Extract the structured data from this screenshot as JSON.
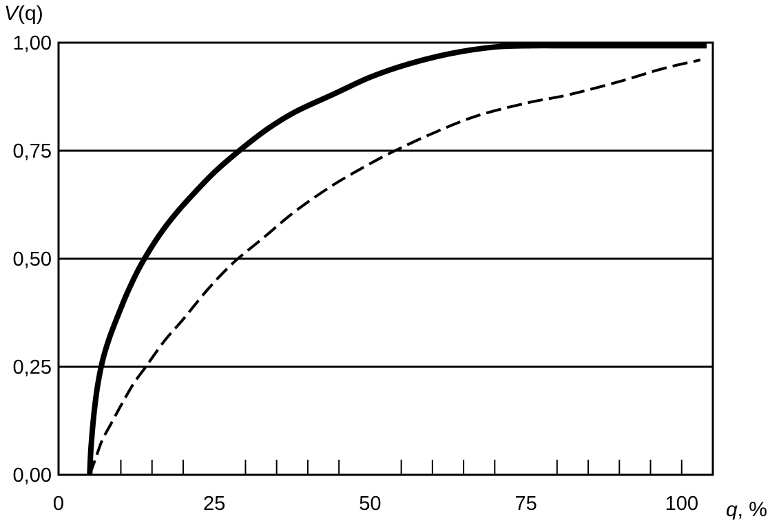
{
  "chart_data": {
    "type": "line",
    "title": "",
    "ylabel_var": "V",
    "ylabel_rest": "(q)",
    "xlabel_var": "q",
    "xlabel_rest": ", %",
    "xlim": [
      0,
      105
    ],
    "ylim": [
      0,
      1
    ],
    "x_ticks": [
      0,
      25,
      50,
      75,
      100
    ],
    "x_tick_labels": [
      "0",
      "25",
      "50",
      "75",
      "100"
    ],
    "x_minor_ticks": [
      5,
      10,
      15,
      20,
      30,
      35,
      40,
      45,
      55,
      60,
      65,
      70,
      80,
      85,
      90,
      95,
      100
    ],
    "y_ticks": [
      0,
      0.25,
      0.5,
      0.75,
      1.0
    ],
    "y_tick_labels": [
      "0,00",
      "0,25",
      "0,50",
      "0,75",
      "1,00"
    ],
    "horizontal_grid": true,
    "vertical_grid": false,
    "colors": {
      "line": "#000000",
      "background": "#ffffff"
    },
    "series": [
      {
        "style": "solid-thick",
        "x": [
          5,
          5.2,
          5.6,
          6.2,
          7,
          8,
          9.3,
          11,
          13,
          15.5,
          18,
          21,
          25,
          29,
          33.5,
          38,
          44,
          50,
          56,
          63,
          70,
          76,
          82,
          90,
          98,
          104
        ],
        "y": [
          0,
          0.06,
          0.13,
          0.2,
          0.26,
          0.31,
          0.36,
          0.42,
          0.48,
          0.54,
          0.59,
          0.64,
          0.7,
          0.75,
          0.8,
          0.84,
          0.88,
          0.92,
          0.95,
          0.975,
          0.99,
          0.993,
          0.993,
          0.993,
          0.993,
          0.993
        ]
      },
      {
        "style": "dashed",
        "x": [
          5,
          6,
          7,
          8.5,
          10,
          12,
          14,
          17,
          20,
          24,
          28,
          33,
          38,
          44,
          50,
          54,
          60,
          67,
          75,
          82,
          90,
          97,
          103
        ],
        "y": [
          0,
          0.04,
          0.08,
          0.12,
          0.16,
          0.21,
          0.25,
          0.31,
          0.36,
          0.43,
          0.49,
          0.55,
          0.61,
          0.67,
          0.72,
          0.75,
          0.79,
          0.83,
          0.86,
          0.88,
          0.91,
          0.94,
          0.96
        ]
      }
    ]
  }
}
